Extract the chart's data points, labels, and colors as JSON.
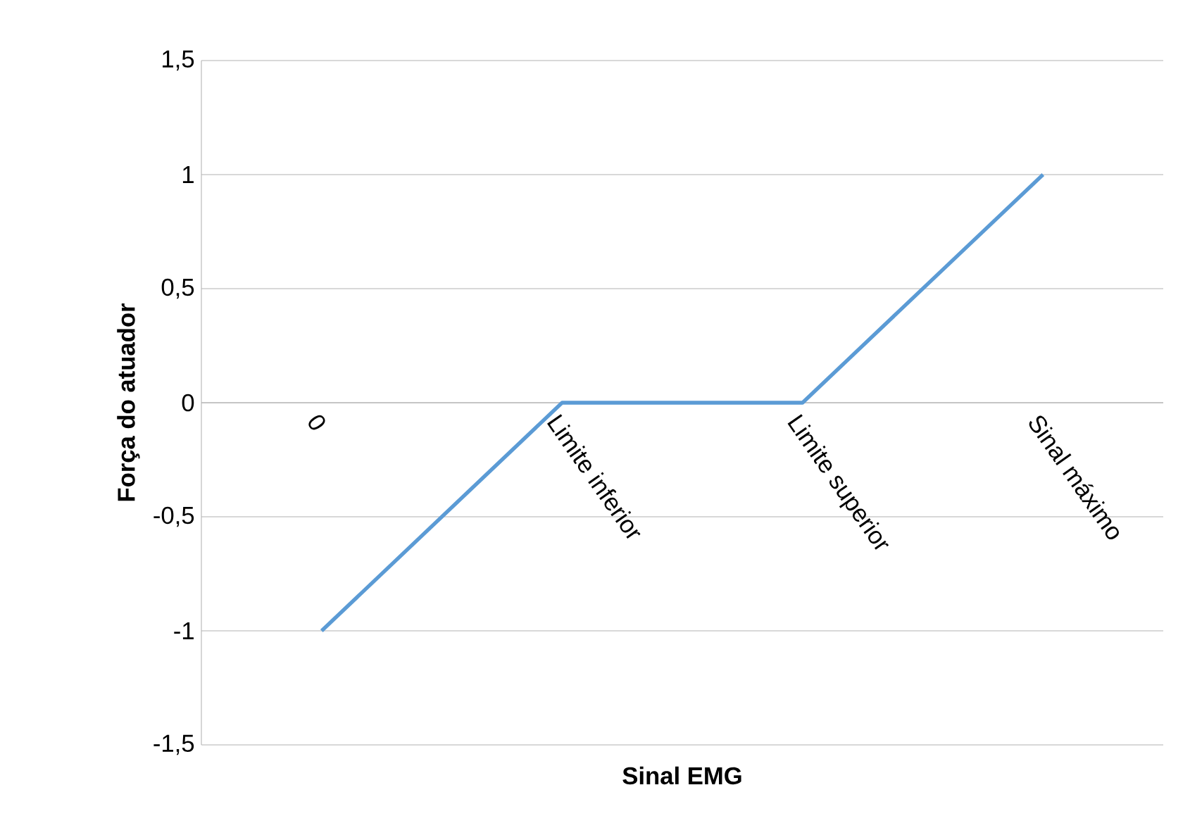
{
  "chart_data": {
    "type": "line",
    "xlabel": "Sinal EMG",
    "ylabel": "Força do atuador",
    "categories": [
      "0",
      "Limite inferior",
      "Limite superior",
      "Sinal máximo"
    ],
    "series": [
      {
        "color": "#5b9bd5",
        "values": [
          -1,
          0,
          0,
          1
        ]
      }
    ],
    "ylim": [
      -1.5,
      1.5
    ],
    "yticks": [
      {
        "value": -1.5,
        "label": "-1,5"
      },
      -1,
      {
        "value": -0.5,
        "label": "-0,5"
      },
      0,
      {
        "value": 0.5,
        "label": "0,5"
      },
      1,
      {
        "value": 1.5,
        "label": "1,5"
      }
    ],
    "grid": "y"
  }
}
